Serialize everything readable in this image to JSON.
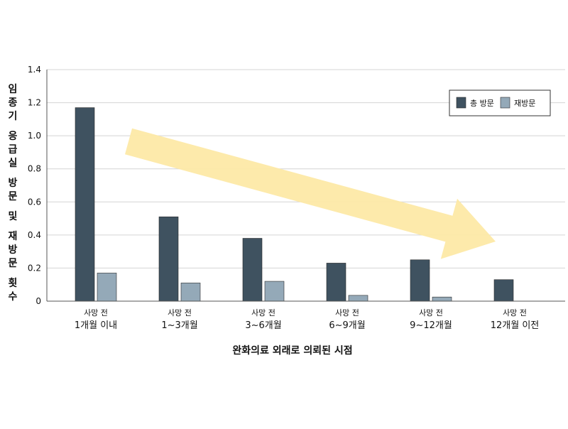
{
  "chart_data": {
    "type": "bar",
    "title": "",
    "xlabel": "완화의료 외래로 의뢰된 시점",
    "ylabel": "임종기 응급실 방문 및 재방문 횟수",
    "ylim": [
      0,
      1.4
    ],
    "yticks": [
      0,
      0.2,
      0.4,
      0.6,
      0.8,
      1.0,
      1.2,
      1.4
    ],
    "ytick_labels": [
      "0",
      "0.2",
      "0.4",
      "0.6",
      "0.8",
      "1.0",
      "1.2",
      "1.4"
    ],
    "grid": true,
    "legend_position": "top-right",
    "categories": [
      {
        "line1": "사망 전",
        "line2": "1개월 이내"
      },
      {
        "line1": "사망 전",
        "line2": "1~3개월"
      },
      {
        "line1": "사망 전",
        "line2": "3~6개월"
      },
      {
        "line1": "사망 전",
        "line2": "6~9개월"
      },
      {
        "line1": "사망 전",
        "line2": "9~12개월"
      },
      {
        "line1": "사망 전",
        "line2": "12개월 이전"
      }
    ],
    "series": [
      {
        "name": "총 방문",
        "color": "#3f5260",
        "values": [
          1.17,
          0.51,
          0.38,
          0.23,
          0.25,
          0.13
        ]
      },
      {
        "name": "재방문",
        "color": "#94a9b8",
        "values": [
          0.17,
          0.11,
          0.12,
          0.035,
          0.025,
          0.0
        ]
      }
    ],
    "annotation": {
      "shape": "trend-arrow",
      "direction": "down-right",
      "color": "#fde9a6"
    }
  }
}
